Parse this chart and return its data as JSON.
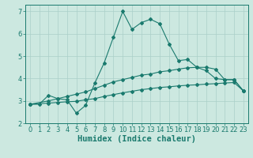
{
  "xlabel": "Humidex (Indice chaleur)",
  "background_color": "#cce8e0",
  "line_color": "#1a7a6e",
  "grid_color": "#aacfc8",
  "xlim": [
    -0.5,
    23.5
  ],
  "ylim": [
    2.0,
    7.3
  ],
  "yticks": [
    2,
    3,
    4,
    5,
    6,
    7
  ],
  "xticks": [
    0,
    1,
    2,
    3,
    4,
    5,
    6,
    7,
    8,
    9,
    10,
    11,
    12,
    13,
    14,
    15,
    16,
    17,
    18,
    19,
    20,
    21,
    22,
    23
  ],
  "series1_x": [
    0,
    1,
    2,
    3,
    4,
    5,
    6,
    7,
    8,
    9,
    10,
    11,
    12,
    13,
    14,
    15,
    16,
    17,
    18,
    19,
    20,
    21,
    22,
    23
  ],
  "series1_y": [
    2.85,
    2.85,
    3.25,
    3.1,
    3.05,
    2.45,
    2.8,
    3.8,
    4.7,
    5.85,
    7.0,
    6.2,
    6.5,
    6.65,
    6.45,
    5.55,
    4.8,
    4.85,
    4.5,
    4.35,
    4.0,
    3.95,
    3.95,
    3.45
  ],
  "series2_x": [
    0,
    2,
    3,
    4,
    5,
    6,
    7,
    8,
    9,
    10,
    11,
    12,
    13,
    14,
    15,
    16,
    17,
    18,
    19,
    20,
    21,
    22,
    23
  ],
  "series2_y": [
    2.85,
    3.0,
    3.1,
    3.2,
    3.3,
    3.4,
    3.55,
    3.7,
    3.85,
    3.95,
    4.05,
    4.15,
    4.2,
    4.3,
    4.35,
    4.42,
    4.48,
    4.5,
    4.5,
    4.42,
    3.95,
    3.95,
    3.45
  ],
  "series3_x": [
    0,
    2,
    3,
    4,
    5,
    6,
    7,
    8,
    9,
    10,
    11,
    12,
    13,
    14,
    15,
    16,
    17,
    18,
    19,
    20,
    21,
    22,
    23
  ],
  "series3_y": [
    2.85,
    2.9,
    2.93,
    2.96,
    2.98,
    3.05,
    3.1,
    3.2,
    3.28,
    3.36,
    3.43,
    3.5,
    3.55,
    3.6,
    3.63,
    3.67,
    3.7,
    3.72,
    3.75,
    3.77,
    3.8,
    3.82,
    3.45
  ],
  "tick_fontsize": 6.0,
  "label_fontsize": 7.5
}
